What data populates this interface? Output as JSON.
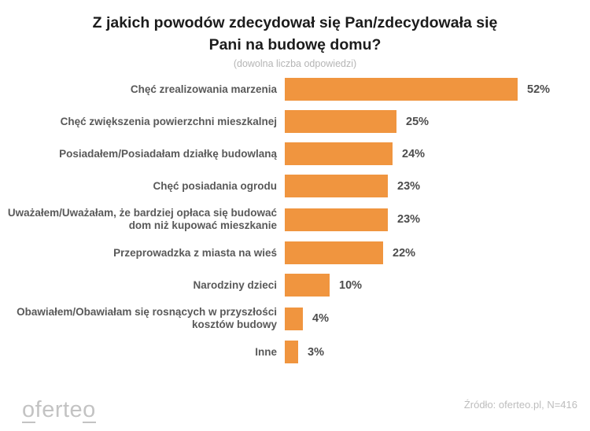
{
  "header": {
    "title_line1": "Z jakich powodów zdecydował się Pan/zdecydowała się",
    "title_line2": "Pani na budowę domu?",
    "subtitle": "(dowolna liczba odpowiedzi)"
  },
  "chart_data": {
    "type": "bar",
    "orientation": "horizontal",
    "title": "Z jakich powodów zdecydował się Pan/zdecydowała się Pani na budowę domu?",
    "subtitle": "(dowolna liczba odpowiedzi)",
    "categories": [
      "Chęć zrealizowania marzenia",
      "Chęć zwiększenia powierzchni mieszkalnej",
      "Posiadałem/Posiadałam działkę budowlaną",
      "Chęć posiadania ogrodu",
      "Uważałem/Uważałam, że bardziej opłaca się budować dom niż kupować mieszkanie",
      "Przeprowadzka z miasta na wieś",
      "Narodziny dzieci",
      "Obawiałem/Obawiałam się rosnących w przyszłości kosztów budowy",
      "Inne"
    ],
    "values": [
      52,
      25,
      24,
      23,
      23,
      22,
      10,
      4,
      3
    ],
    "value_suffix": "%",
    "xlim": [
      0,
      57
    ],
    "grid": false,
    "legend": false,
    "bar_color": "#F0953F",
    "label_color": "#595959",
    "value_color": "#4d4d4d"
  },
  "footer": {
    "logo_o1": "o",
    "logo_mid": "ferte",
    "logo_o2": "o",
    "source": "Źródło: oferteo.pl, N=416"
  }
}
